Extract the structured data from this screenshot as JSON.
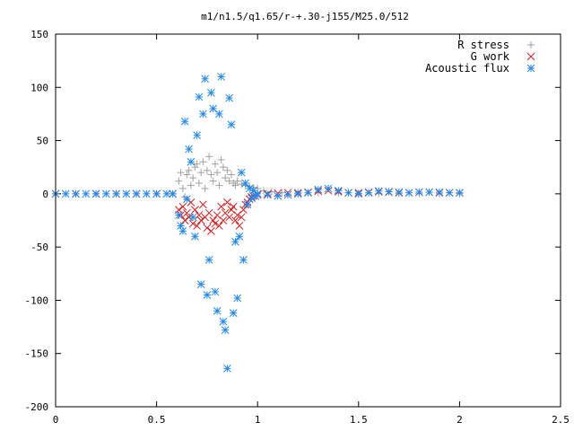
{
  "chart_data": {
    "type": "scatter",
    "title": "m1/n1.5/q1.65/r-+.30-j155/M25.0/512",
    "xlabel": "",
    "ylabel": "",
    "xlim": [
      0,
      2.5
    ],
    "ylim": [
      -200,
      150
    ],
    "xticks": [
      "0",
      "0.5",
      "1",
      "1.5",
      "2",
      "2.5"
    ],
    "yticks": [
      "150",
      "100",
      "50",
      "0",
      "-50",
      "-100",
      "-150",
      "-200"
    ],
    "grid": false,
    "legend_position": "top-right",
    "series": [
      {
        "name": "R stress",
        "marker": "plus",
        "color": "#a0a0a0",
        "points": [
          [
            0.0,
            0
          ],
          [
            0.1,
            0
          ],
          [
            0.2,
            0
          ],
          [
            0.3,
            0
          ],
          [
            0.4,
            0
          ],
          [
            0.5,
            0
          ],
          [
            0.58,
            0
          ],
          [
            0.61,
            12
          ],
          [
            0.62,
            20
          ],
          [
            0.63,
            5
          ],
          [
            0.64,
            -3
          ],
          [
            0.65,
            18
          ],
          [
            0.66,
            22
          ],
          [
            0.67,
            8
          ],
          [
            0.68,
            15
          ],
          [
            0.69,
            25
          ],
          [
            0.7,
            28
          ],
          [
            0.71,
            10
          ],
          [
            0.72,
            20
          ],
          [
            0.73,
            30
          ],
          [
            0.74,
            5
          ],
          [
            0.75,
            22
          ],
          [
            0.76,
            35
          ],
          [
            0.77,
            18
          ],
          [
            0.78,
            12
          ],
          [
            0.79,
            28
          ],
          [
            0.8,
            20
          ],
          [
            0.81,
            8
          ],
          [
            0.82,
            32
          ],
          [
            0.83,
            25
          ],
          [
            0.84,
            15
          ],
          [
            0.85,
            22
          ],
          [
            0.86,
            12
          ],
          [
            0.87,
            18
          ],
          [
            0.88,
            10
          ],
          [
            0.89,
            8
          ],
          [
            0.9,
            12
          ],
          [
            0.92,
            9
          ],
          [
            0.94,
            8
          ],
          [
            0.96,
            7
          ],
          [
            0.98,
            6
          ],
          [
            1.0,
            5
          ],
          [
            1.03,
            3
          ],
          [
            1.07,
            2
          ],
          [
            1.12,
            1
          ],
          [
            1.2,
            1
          ],
          [
            1.3,
            1
          ],
          [
            1.4,
            0.8
          ],
          [
            1.5,
            0.5
          ],
          [
            1.6,
            0.4
          ],
          [
            1.7,
            0.3
          ],
          [
            1.8,
            0.2
          ],
          [
            1.9,
            0.2
          ],
          [
            2.0,
            0.2
          ]
        ]
      },
      {
        "name": "G work",
        "marker": "cross",
        "color": "#cc2222",
        "points": [
          [
            0.0,
            0
          ],
          [
            0.1,
            0
          ],
          [
            0.2,
            0
          ],
          [
            0.3,
            0
          ],
          [
            0.4,
            0
          ],
          [
            0.5,
            0
          ],
          [
            0.58,
            0
          ],
          [
            0.61,
            -15
          ],
          [
            0.62,
            -20
          ],
          [
            0.63,
            -12
          ],
          [
            0.64,
            -25
          ],
          [
            0.65,
            -18
          ],
          [
            0.66,
            -22
          ],
          [
            0.67,
            -8
          ],
          [
            0.68,
            -28
          ],
          [
            0.69,
            -15
          ],
          [
            0.7,
            -30
          ],
          [
            0.71,
            -20
          ],
          [
            0.72,
            -25
          ],
          [
            0.73,
            -10
          ],
          [
            0.74,
            -22
          ],
          [
            0.75,
            -32
          ],
          [
            0.76,
            -18
          ],
          [
            0.77,
            -35
          ],
          [
            0.78,
            -25
          ],
          [
            0.79,
            -28
          ],
          [
            0.8,
            -20
          ],
          [
            0.81,
            -30
          ],
          [
            0.82,
            -12
          ],
          [
            0.83,
            -25
          ],
          [
            0.84,
            -18
          ],
          [
            0.85,
            -8
          ],
          [
            0.86,
            -22
          ],
          [
            0.87,
            -15
          ],
          [
            0.88,
            -12
          ],
          [
            0.89,
            -25
          ],
          [
            0.9,
            -20
          ],
          [
            0.91,
            -30
          ],
          [
            0.92,
            -22
          ],
          [
            0.93,
            -15
          ],
          [
            0.94,
            -10
          ],
          [
            0.95,
            -8
          ],
          [
            0.96,
            -5
          ],
          [
            0.97,
            -3
          ],
          [
            0.98,
            -2
          ],
          [
            1.0,
            -1
          ],
          [
            1.05,
            0
          ],
          [
            1.1,
            0.5
          ],
          [
            1.15,
            1
          ],
          [
            1.2,
            1
          ],
          [
            1.25,
            1.5
          ],
          [
            1.3,
            2.5
          ],
          [
            1.35,
            3
          ],
          [
            1.4,
            2
          ],
          [
            1.45,
            1
          ],
          [
            1.5,
            1
          ],
          [
            1.55,
            1.5
          ],
          [
            1.6,
            2
          ],
          [
            1.65,
            1.5
          ],
          [
            1.7,
            1
          ],
          [
            1.75,
            1
          ],
          [
            1.8,
            1.5
          ],
          [
            1.85,
            1.5
          ],
          [
            1.9,
            1
          ],
          [
            1.95,
            1
          ],
          [
            2.0,
            1
          ]
        ]
      },
      {
        "name": "Acoustic flux",
        "marker": "star",
        "color": "#2288ee",
        "points": [
          [
            0.0,
            0
          ],
          [
            0.05,
            0
          ],
          [
            0.1,
            0
          ],
          [
            0.15,
            0
          ],
          [
            0.2,
            0
          ],
          [
            0.25,
            0
          ],
          [
            0.3,
            0
          ],
          [
            0.35,
            0
          ],
          [
            0.4,
            0
          ],
          [
            0.45,
            0
          ],
          [
            0.5,
            0
          ],
          [
            0.55,
            0
          ],
          [
            0.58,
            0
          ],
          [
            0.61,
            -20
          ],
          [
            0.62,
            -30
          ],
          [
            0.63,
            -35
          ],
          [
            0.64,
            68
          ],
          [
            0.65,
            -5
          ],
          [
            0.66,
            42
          ],
          [
            0.67,
            30
          ],
          [
            0.68,
            -22
          ],
          [
            0.69,
            -40
          ],
          [
            0.7,
            55
          ],
          [
            0.71,
            91
          ],
          [
            0.72,
            -85
          ],
          [
            0.73,
            75
          ],
          [
            0.74,
            108
          ],
          [
            0.75,
            -95
          ],
          [
            0.76,
            -62
          ],
          [
            0.77,
            95
          ],
          [
            0.78,
            80
          ],
          [
            0.79,
            -92
          ],
          [
            0.8,
            -110
          ],
          [
            0.81,
            75
          ],
          [
            0.82,
            110
          ],
          [
            0.83,
            -120
          ],
          [
            0.84,
            -128
          ],
          [
            0.85,
            -164
          ],
          [
            0.86,
            90
          ],
          [
            0.87,
            65
          ],
          [
            0.88,
            -112
          ],
          [
            0.89,
            -45
          ],
          [
            0.9,
            -98
          ],
          [
            0.91,
            -40
          ],
          [
            0.92,
            20
          ],
          [
            0.93,
            -62
          ],
          [
            0.94,
            10
          ],
          [
            0.95,
            -10
          ],
          [
            0.96,
            5
          ],
          [
            0.97,
            -4
          ],
          [
            0.98,
            3
          ],
          [
            0.99,
            -2
          ],
          [
            1.0,
            0
          ],
          [
            1.05,
            -1
          ],
          [
            1.1,
            -2
          ],
          [
            1.15,
            -1
          ],
          [
            1.2,
            0
          ],
          [
            1.25,
            1
          ],
          [
            1.3,
            4
          ],
          [
            1.35,
            5
          ],
          [
            1.4,
            3
          ],
          [
            1.45,
            1
          ],
          [
            1.5,
            0
          ],
          [
            1.55,
            1
          ],
          [
            1.6,
            2.5
          ],
          [
            1.65,
            2
          ],
          [
            1.7,
            1.5
          ],
          [
            1.75,
            1
          ],
          [
            1.8,
            1.5
          ],
          [
            1.85,
            1.5
          ],
          [
            1.9,
            1.5
          ],
          [
            1.95,
            1
          ],
          [
            2.0,
            1
          ]
        ]
      }
    ]
  }
}
